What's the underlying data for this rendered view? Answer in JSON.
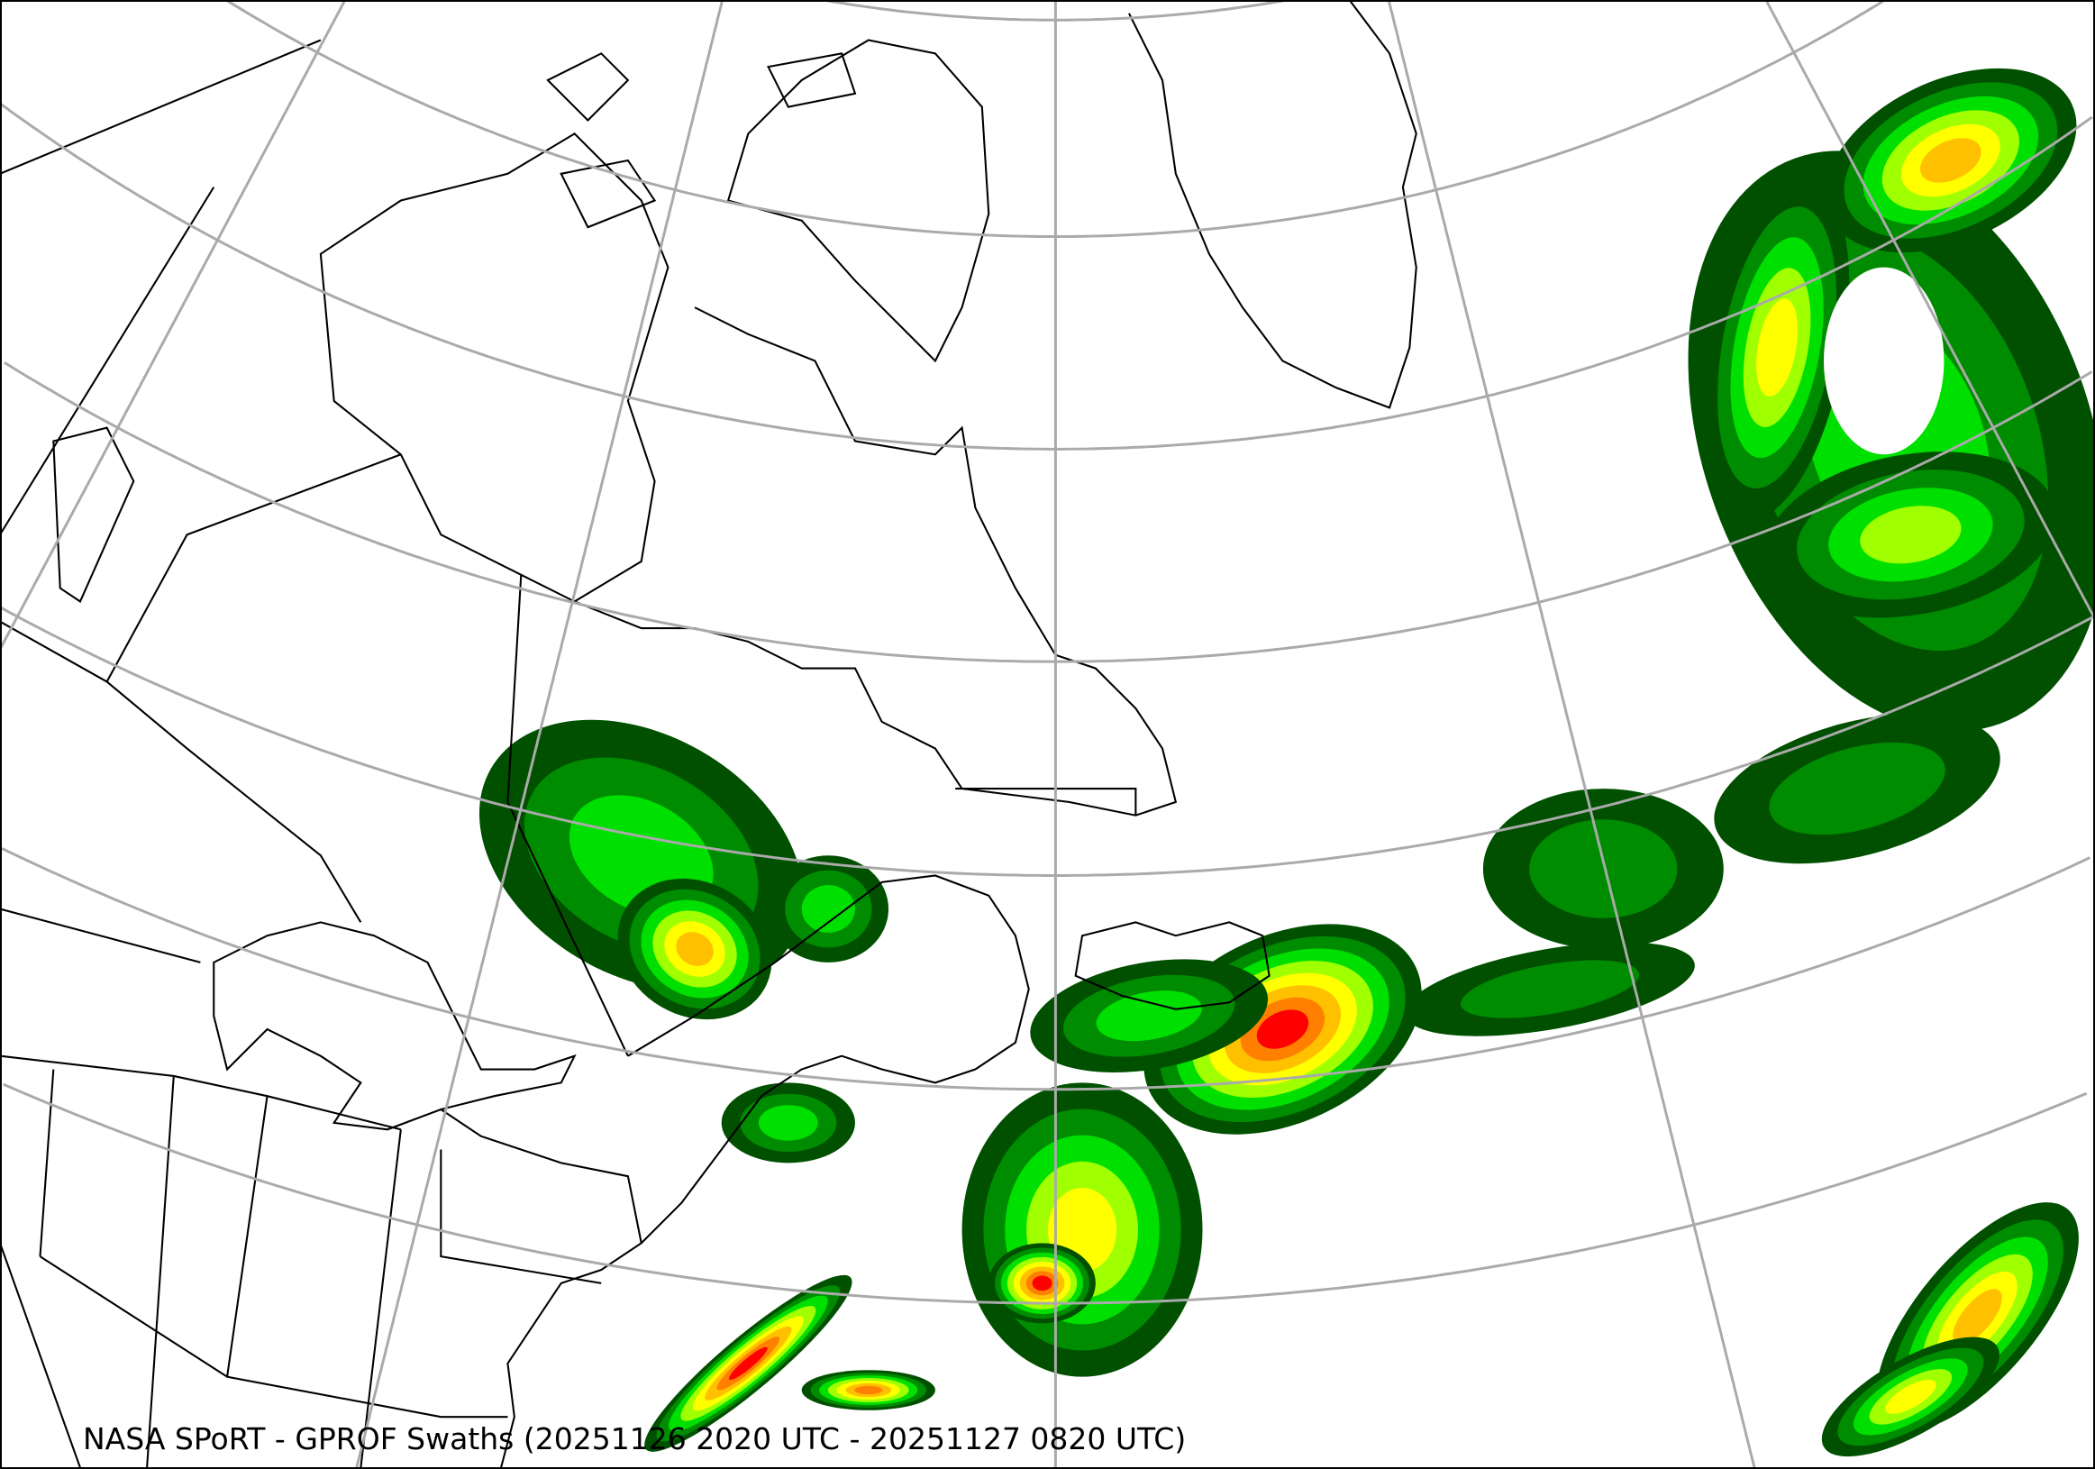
{
  "caption": "NASA SPoRT - GPROF Swaths (20251126 2020 UTC - 20251127 0820 UTC)",
  "colors": {
    "graticule": "#aaaaaa",
    "coastline": "#000000",
    "precip_scale": [
      "#005000",
      "#008c00",
      "#00e000",
      "#a0ff00",
      "#ffff00",
      "#ffc000",
      "#ff8000",
      "#ff0000",
      "#a00000"
    ]
  }
}
